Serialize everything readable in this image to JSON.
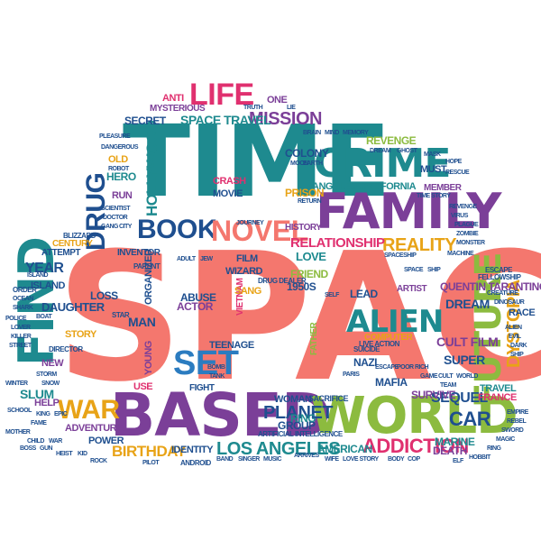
{
  "colors": {
    "salmon": "#f4776e",
    "teal": "#1e8a8f",
    "purple": "#7b3f98",
    "green": "#8cbb3f",
    "orange": "#e8a317",
    "navy": "#1f4f8f",
    "pink": "#e0306f",
    "blue": "#2b7cc0"
  },
  "words": {
    "space": "SPACE",
    "time": "TIME",
    "family": "FAMILY",
    "based": "BASED",
    "world": "WORLD",
    "find": "FIND",
    "crime": "CRIME",
    "future": "FUTURE",
    "alien": "ALIEN",
    "book": "BOOK",
    "novel": "NOVEL",
    "life": "LIFE",
    "drug": "DRUG",
    "war": "WAR",
    "set": "SET",
    "planet": "PLANET",
    "los_angeles": "LOS ANGELES",
    "addiction": "ADDICTION",
    "reality": "REALITY",
    "relationship": "RELATIONSHIP",
    "mission": "MISSION",
    "hollywood": "HOLLYWOOD",
    "space_travel": "SPACE TRAVEL",
    "dystopia": "DYSTOPIA",
    "car": "CAR",
    "birthday": "BIRTHDAY",
    "year": "YEAR",
    "angeles_california": "ANGELES CALIFORNIA",
    "secret": "SECRET",
    "love": "LOVE",
    "cult_film": "CULT FILM",
    "sequel": "SEQUEL",
    "mafia": "MAFIA",
    "prison": "PRISON",
    "colony": "COLONY",
    "revenge": "REVENGE",
    "must": "MUST",
    "member": "MEMBER",
    "quentin_tarantino": "QUENTIN TARANTINO",
    "dream": "DREAM",
    "race": "RACE",
    "travel": "TRAVEL",
    "france": "FRANCE",
    "marine": "MARINE",
    "death": "DEATH",
    "identity": "IDENTITY",
    "american": "AMERICAN",
    "group": "GROUP",
    "ring": "RING",
    "friend": "FRIEND",
    "artist": "ARTIST",
    "lead": "LEAD",
    "nazi": "NAZI",
    "super": "SUPER",
    "survive": "SURVIVE",
    "woman": "WOMAN",
    "computer": "COMPUTER",
    "adventure": "ADVENTURE",
    "power": "POWER",
    "slum": "SLUM",
    "daughter": "DAUGHTER",
    "story": "STORY",
    "manipulation": "MANIPULATION",
    "island": "ISLAND",
    "man": "MAN",
    "loss": "LOSS",
    "abuse": "ABUSE",
    "actor": "ACTOR",
    "wizard": "WIZARD",
    "teenage": "TEENAGE",
    "fight": "FIGHT",
    "young": "YOUNG",
    "organized": "ORGANIZED",
    "inventor": "INVENTOR",
    "attempt": "ATTEMPT",
    "century": "CENTURY",
    "hero": "HERO",
    "run": "RUN",
    "old": "OLD",
    "movie": "MOVIE",
    "crash": "CRASH",
    "film": "FILM",
    "history": "HISTORY",
    "nineteen_fifties": "1950S",
    "vietnam": "VIETNAM",
    "father": "FATHER",
    "anti": "ANTI",
    "mysterious": "MYSTERIOUS",
    "one": "ONE",
    "new": "NEW",
    "help": "HELP",
    "artificial_intelligence": "ARTIFICIAL INTELLIGENCE",
    "sacrifice": "SACRIFICE",
    "use": "USE",
    "fellowship": "FELLOWSHIP",
    "escape": "ESCAPE",
    "suicide": "SUICIDE",
    "live_action": "LIVE ACTION",
    "drug_dealer": "DRUG DEALER",
    "blizzard": "BLIZZARD",
    "order": "ORDER",
    "director": "DIRECTOR",
    "android": "ANDROID",
    "machine": "MACHINE",
    "parent": "PARENT",
    "star": "STAR",
    "time_story": "TIME STORY",
    "arrives": "ARRIVES",
    "wife": "WIFE",
    "team": "TEAM",
    "sang": "SANG",
    "self": "SELF",
    "paris": "PARIS",
    "journey": "JOURNEY",
    "moon": "MOON",
    "earth": "EARTH",
    "return": "RETURN",
    "robot": "ROBOT",
    "dangerous": "DANGEROUS",
    "pleasure": "PLEASURE",
    "scientist": "SCIENTIST",
    "doctor": "DOCTOR",
    "gang": "GANG",
    "city": "CITY",
    "police": "POLICE",
    "lover": "LOVER",
    "killer": "KILLER",
    "street": "STREET",
    "school": "SCHOOL",
    "king": "KING",
    "epic": "EPIC",
    "fame": "FAME",
    "mother": "MOTHER",
    "child": "CHILD",
    "war2": "WAR",
    "boss": "BOSS",
    "gun": "GUN",
    "heist": "HEIST",
    "kid": "KID",
    "rock": "ROCK",
    "alien2": "ALIEN",
    "evil": "EVIL",
    "dark": "DARK",
    "ship": "SHIP",
    "empire": "EMPIRE",
    "rebel": "REBEL",
    "sword": "SWORD",
    "magic": "MAGIC",
    "ring2": "RING",
    "hobbit": "HOBBIT",
    "elf": "ELF",
    "body": "BODY",
    "cop": "COP",
    "love_story": "LOVE STORY",
    "singer": "SINGER",
    "music": "MUSIC",
    "band": "BAND",
    "pilot": "PILOT",
    "space2": "SPACE",
    "ship2": "SHIP",
    "spaceship": "SPACESHIP",
    "adult": "ADULT",
    "jew": "JEW",
    "bomb": "BOMB",
    "tank": "TANK",
    "escape2": "ESCAPE",
    "poor": "POOR",
    "rich": "RICH",
    "game": "GAME",
    "cult": "CULT",
    "world2": "WORLD",
    "truth": "TRUTH",
    "lie": "LIE",
    "brain": "BRAIN",
    "mind": "MIND",
    "memory": "MEMORY",
    "dream2": "DREAM",
    "ghost": "GHOST",
    "mask": "MASK",
    "hope": "HOPE",
    "rescue": "RESCUE",
    "revenge2": "REVENGE",
    "virus": "VIRUS",
    "plague": "PLAGUE",
    "zombie": "ZOMBIE",
    "monster": "MONSTER",
    "creature": "CREATURE",
    "dinosaur": "DINOSAUR",
    "island2": "ISLAND",
    "ocean": "OCEAN",
    "shark": "SHARK",
    "boat": "BOAT",
    "storm": "STORM",
    "snow": "SNOW",
    "winter": "WINTER"
  }
}
